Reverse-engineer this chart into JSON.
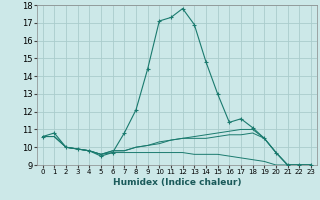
{
  "xlabel": "Humidex (Indice chaleur)",
  "bg_color": "#cce8e8",
  "grid_color": "#aacccc",
  "line_color": "#1a7a6e",
  "xlim": [
    -0.5,
    23.5
  ],
  "ylim": [
    9,
    18
  ],
  "xticks": [
    0,
    1,
    2,
    3,
    4,
    5,
    6,
    7,
    8,
    9,
    10,
    11,
    12,
    13,
    14,
    15,
    16,
    17,
    18,
    19,
    20,
    21,
    22,
    23
  ],
  "yticks": [
    9,
    10,
    11,
    12,
    13,
    14,
    15,
    16,
    17,
    18
  ],
  "series": [
    {
      "x": [
        0,
        1,
        2,
        3,
        4,
        5,
        6,
        7,
        8,
        9,
        10,
        11,
        12,
        13,
        14,
        15,
        16,
        17,
        18,
        19,
        20,
        21,
        22,
        23
      ],
      "y": [
        10.6,
        10.8,
        10.0,
        9.9,
        9.8,
        9.5,
        9.7,
        10.8,
        12.1,
        14.4,
        17.1,
        17.3,
        17.8,
        16.9,
        14.8,
        13.0,
        11.4,
        11.6,
        11.1,
        10.5,
        9.7,
        9.0,
        9.0,
        9.0
      ],
      "marker": true
    },
    {
      "x": [
        0,
        1,
        2,
        3,
        4,
        5,
        6,
        7,
        8,
        9,
        10,
        11,
        12,
        13,
        14,
        15,
        16,
        17,
        18,
        19,
        20,
        21,
        22,
        23
      ],
      "y": [
        10.6,
        10.6,
        10.0,
        9.9,
        9.8,
        9.6,
        9.8,
        9.8,
        10.0,
        10.1,
        10.2,
        10.4,
        10.5,
        10.6,
        10.7,
        10.8,
        10.9,
        11.0,
        11.0,
        10.5,
        9.7,
        9.0,
        9.0,
        9.0
      ],
      "marker": false
    },
    {
      "x": [
        0,
        1,
        2,
        3,
        4,
        5,
        6,
        7,
        8,
        9,
        10,
        11,
        12,
        13,
        14,
        15,
        16,
        17,
        18,
        19,
        20,
        21,
        22,
        23
      ],
      "y": [
        10.6,
        10.6,
        10.0,
        9.9,
        9.8,
        9.6,
        9.8,
        9.8,
        10.0,
        10.1,
        10.3,
        10.4,
        10.5,
        10.5,
        10.5,
        10.6,
        10.7,
        10.7,
        10.8,
        10.5,
        9.7,
        9.0,
        9.0,
        9.0
      ],
      "marker": false
    },
    {
      "x": [
        0,
        1,
        2,
        3,
        4,
        5,
        6,
        7,
        8,
        9,
        10,
        11,
        12,
        13,
        14,
        15,
        16,
        17,
        18,
        19,
        20,
        21,
        22,
        23
      ],
      "y": [
        10.6,
        10.6,
        10.0,
        9.9,
        9.8,
        9.6,
        9.7,
        9.7,
        9.7,
        9.7,
        9.7,
        9.7,
        9.7,
        9.6,
        9.6,
        9.6,
        9.5,
        9.4,
        9.3,
        9.2,
        9.0,
        9.0,
        9.0,
        9.0
      ],
      "marker": false
    }
  ]
}
